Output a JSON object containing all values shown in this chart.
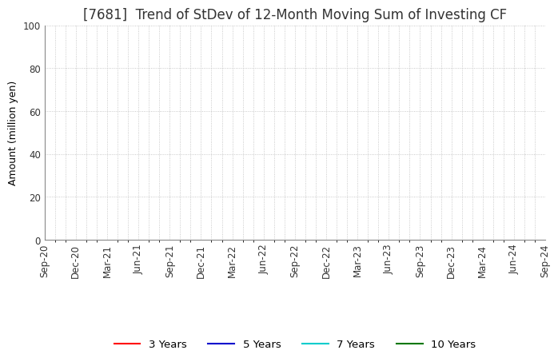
{
  "title": "[7681]  Trend of StDev of 12-Month Moving Sum of Investing CF",
  "ylabel": "Amount (million yen)",
  "ylim": [
    0,
    100
  ],
  "yticks": [
    0,
    20,
    40,
    60,
    80,
    100
  ],
  "background_color": "#ffffff",
  "grid_color": "#bbbbbb",
  "title_fontsize": 12,
  "axis_fontsize": 9,
  "tick_fontsize": 8.5,
  "legend_entries": [
    {
      "label": "3 Years",
      "color": "#ff0000"
    },
    {
      "label": "5 Years",
      "color": "#0000cc"
    },
    {
      "label": "7 Years",
      "color": "#00cccc"
    },
    {
      "label": "10 Years",
      "color": "#007700"
    }
  ],
  "x_tick_labels": [
    "Sep-20",
    "Dec-20",
    "Mar-21",
    "Jun-21",
    "Sep-21",
    "Dec-21",
    "Mar-22",
    "Jun-22",
    "Sep-22",
    "Dec-22",
    "Mar-23",
    "Jun-23",
    "Sep-23",
    "Dec-23",
    "Mar-24",
    "Jun-24",
    "Sep-24"
  ]
}
